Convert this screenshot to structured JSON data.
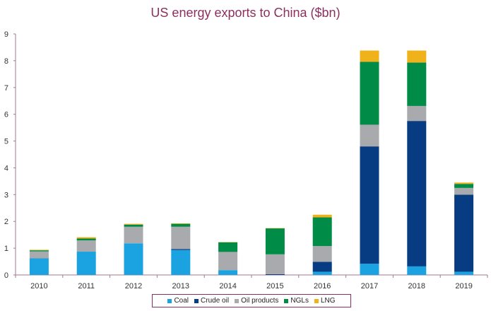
{
  "chart_data": {
    "type": "bar",
    "stacked": true,
    "title": "US energy exports to China ($bn)",
    "xlabel": "",
    "ylabel": "",
    "ylim": [
      0,
      9
    ],
    "yticks": [
      "0",
      "1",
      "2",
      "3",
      "4",
      "5",
      "6",
      "7",
      "8",
      "9"
    ],
    "grid": false,
    "legend_position": "bottom",
    "categories": [
      "2010",
      "2011",
      "2012",
      "2013",
      "2014",
      "2015",
      "2016",
      "2017",
      "2018",
      "2019"
    ],
    "series": [
      {
        "name": "Coal",
        "color": "#1aa3e0",
        "values": [
          0.62,
          0.87,
          1.18,
          0.93,
          0.18,
          0.0,
          0.12,
          0.42,
          0.32,
          0.12
        ]
      },
      {
        "name": "Crude oil",
        "color": "#073b82",
        "values": [
          0.0,
          0.0,
          0.0,
          0.04,
          0.0,
          0.03,
          0.37,
          4.38,
          5.43,
          2.88
        ]
      },
      {
        "name": "Oil products",
        "color": "#a8aaad",
        "values": [
          0.26,
          0.42,
          0.62,
          0.83,
          0.68,
          0.74,
          0.59,
          0.81,
          0.56,
          0.25
        ]
      },
      {
        "name": "NGLs",
        "color": "#008c46",
        "values": [
          0.04,
          0.07,
          0.08,
          0.11,
          0.36,
          0.97,
          1.07,
          2.35,
          1.62,
          0.15
        ]
      },
      {
        "name": "LNG",
        "color": "#f0b21a",
        "values": [
          0.02,
          0.05,
          0.03,
          0.02,
          0.01,
          0.01,
          0.1,
          0.42,
          0.45,
          0.05
        ]
      }
    ]
  }
}
